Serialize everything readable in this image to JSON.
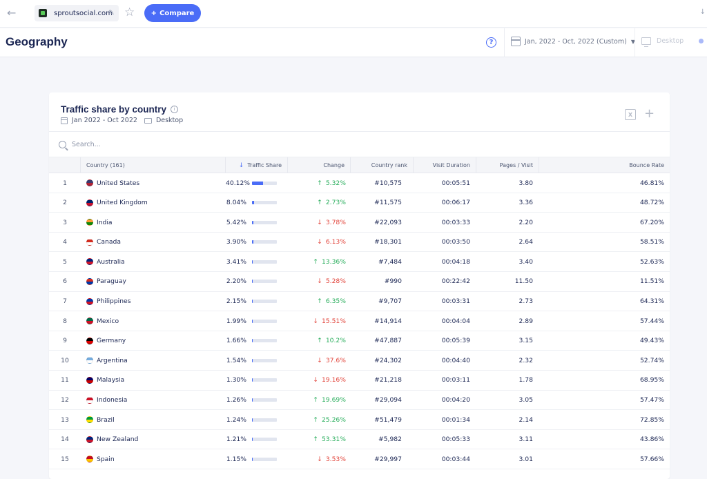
{
  "topbar": {
    "domain": "sproutsocial.com",
    "compare_label": "Compare"
  },
  "page": {
    "title": "Geography",
    "date_range": "Jan, 2022 - Oct, 2022 (Custom)",
    "device": "Desktop"
  },
  "card": {
    "title": "Traffic share by country",
    "date_range": "Jan 2022 - Oct 2022",
    "device": "Desktop",
    "search_placeholder": "Search..."
  },
  "table": {
    "headers": {
      "country": "Country (161)",
      "traffic_share": "Traffic Share",
      "change": "Change",
      "country_rank": "Country rank",
      "visit_duration": "Visit Duration",
      "pages_visit": "Pages / Visit",
      "bounce_rate": "Bounce Rate"
    },
    "rows": [
      {
        "num": "1",
        "country": "United States",
        "share": "40.12%",
        "share_pct": 40.12,
        "change": "5.32%",
        "dir": "up",
        "rank": "#10,575",
        "duration": "00:05:51",
        "pages": "3.80",
        "bounce": "46.81%",
        "flag_colors": [
          "#3c3b6e",
          "#b22234"
        ]
      },
      {
        "num": "2",
        "country": "United Kingdom",
        "share": "8.04%",
        "share_pct": 8.04,
        "change": "2.73%",
        "dir": "up",
        "rank": "#11,575",
        "duration": "00:06:17",
        "pages": "3.36",
        "bounce": "48.72%",
        "flag_colors": [
          "#012169",
          "#c8102e"
        ]
      },
      {
        "num": "3",
        "country": "India",
        "share": "5.42%",
        "share_pct": 5.42,
        "change": "3.78%",
        "dir": "down",
        "rank": "#22,093",
        "duration": "00:03:33",
        "pages": "2.20",
        "bounce": "67.20%",
        "flag_colors": [
          "#ff9933",
          "#138808"
        ]
      },
      {
        "num": "4",
        "country": "Canada",
        "share": "3.90%",
        "share_pct": 3.9,
        "change": "6.13%",
        "dir": "down",
        "rank": "#18,301",
        "duration": "00:03:50",
        "pages": "2.64",
        "bounce": "58.51%",
        "flag_colors": [
          "#d52b1e",
          "#ffffff"
        ]
      },
      {
        "num": "5",
        "country": "Australia",
        "share": "3.41%",
        "share_pct": 3.41,
        "change": "13.36%",
        "dir": "up",
        "rank": "#7,484",
        "duration": "00:04:18",
        "pages": "3.40",
        "bounce": "52.63%",
        "flag_colors": [
          "#00247d",
          "#cf142b"
        ]
      },
      {
        "num": "6",
        "country": "Paraguay",
        "share": "2.20%",
        "share_pct": 2.2,
        "change": "5.28%",
        "dir": "down",
        "rank": "#990",
        "duration": "00:22:42",
        "pages": "11.50",
        "bounce": "11.51%",
        "flag_colors": [
          "#d52b1e",
          "#0038a8"
        ]
      },
      {
        "num": "7",
        "country": "Philippines",
        "share": "2.15%",
        "share_pct": 2.15,
        "change": "6.35%",
        "dir": "up",
        "rank": "#9,707",
        "duration": "00:03:31",
        "pages": "2.73",
        "bounce": "64.31%",
        "flag_colors": [
          "#0038a8",
          "#ce1126"
        ]
      },
      {
        "num": "8",
        "country": "Mexico",
        "share": "1.99%",
        "share_pct": 1.99,
        "change": "15.51%",
        "dir": "down",
        "rank": "#14,914",
        "duration": "00:04:04",
        "pages": "2.89",
        "bounce": "57.44%",
        "flag_colors": [
          "#006847",
          "#ce1126"
        ]
      },
      {
        "num": "9",
        "country": "Germany",
        "share": "1.66%",
        "share_pct": 1.66,
        "change": "10.2%",
        "dir": "up",
        "rank": "#47,887",
        "duration": "00:05:39",
        "pages": "3.15",
        "bounce": "49.43%",
        "flag_colors": [
          "#000000",
          "#dd0000"
        ]
      },
      {
        "num": "10",
        "country": "Argentina",
        "share": "1.54%",
        "share_pct": 1.54,
        "change": "37.6%",
        "dir": "down",
        "rank": "#24,302",
        "duration": "00:04:40",
        "pages": "2.32",
        "bounce": "52.74%",
        "flag_colors": [
          "#74acdf",
          "#ffffff"
        ]
      },
      {
        "num": "11",
        "country": "Malaysia",
        "share": "1.30%",
        "share_pct": 1.3,
        "change": "19.16%",
        "dir": "down",
        "rank": "#21,218",
        "duration": "00:03:11",
        "pages": "1.78",
        "bounce": "68.95%",
        "flag_colors": [
          "#010066",
          "#cc0001"
        ]
      },
      {
        "num": "12",
        "country": "Indonesia",
        "share": "1.26%",
        "share_pct": 1.26,
        "change": "19.69%",
        "dir": "up",
        "rank": "#29,094",
        "duration": "00:04:20",
        "pages": "3.05",
        "bounce": "57.47%",
        "flag_colors": [
          "#ce1126",
          "#ffffff"
        ]
      },
      {
        "num": "13",
        "country": "Brazil",
        "share": "1.24%",
        "share_pct": 1.24,
        "change": "25.26%",
        "dir": "up",
        "rank": "#51,479",
        "duration": "00:01:34",
        "pages": "2.14",
        "bounce": "72.85%",
        "flag_colors": [
          "#009c3b",
          "#ffdf00"
        ]
      },
      {
        "num": "14",
        "country": "New Zealand",
        "share": "1.21%",
        "share_pct": 1.21,
        "change": "53.31%",
        "dir": "up",
        "rank": "#5,982",
        "duration": "00:05:33",
        "pages": "3.11",
        "bounce": "43.86%",
        "flag_colors": [
          "#00247d",
          "#cc142b"
        ]
      },
      {
        "num": "15",
        "country": "Spain",
        "share": "1.15%",
        "share_pct": 1.15,
        "change": "3.53%",
        "dir": "down",
        "rank": "#29,997",
        "duration": "00:03:44",
        "pages": "3.01",
        "bounce": "57.66%",
        "flag_colors": [
          "#c60b1e",
          "#ffc400"
        ]
      }
    ]
  },
  "colors": {
    "accent": "#4a6cf7",
    "positive": "#2aae5d",
    "negative": "#e2443b"
  }
}
